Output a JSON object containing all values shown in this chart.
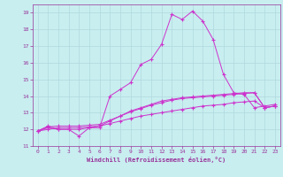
{
  "xlabel": "Windchill (Refroidissement éolien,°C)",
  "background_color": "#c8eef0",
  "grid_color": "#b0d8dc",
  "line_color": "#cc33cc",
  "xlim": [
    -0.5,
    23.5
  ],
  "ylim": [
    11,
    19.5
  ],
  "xticks": [
    0,
    1,
    2,
    3,
    4,
    5,
    6,
    7,
    8,
    9,
    10,
    11,
    12,
    13,
    14,
    15,
    16,
    17,
    18,
    19,
    20,
    21,
    22,
    23
  ],
  "yticks": [
    11,
    12,
    13,
    14,
    15,
    16,
    17,
    18,
    19
  ],
  "series": [
    {
      "x": [
        0,
        1,
        2,
        3,
        4,
        5,
        6,
        7,
        8,
        9,
        10,
        11,
        12,
        13,
        14,
        15,
        16,
        17,
        18,
        19,
        20,
        21,
        22,
        23
      ],
      "y": [
        11.9,
        12.2,
        12.0,
        12.0,
        11.6,
        12.1,
        12.1,
        14.0,
        14.4,
        14.8,
        15.9,
        16.2,
        17.1,
        18.9,
        18.6,
        19.1,
        18.5,
        17.4,
        15.3,
        14.2,
        14.1,
        13.3,
        13.4,
        13.5
      ]
    },
    {
      "x": [
        0,
        1,
        2,
        3,
        4,
        5,
        6,
        7,
        8,
        9,
        10,
        11,
        12,
        13,
        14,
        15,
        16,
        17,
        18,
        19,
        20,
        21,
        22,
        23
      ],
      "y": [
        11.9,
        12.1,
        12.0,
        12.0,
        12.0,
        12.1,
        12.2,
        12.5,
        12.8,
        13.1,
        13.3,
        13.5,
        13.7,
        13.8,
        13.9,
        13.95,
        14.0,
        14.05,
        14.1,
        14.15,
        14.2,
        14.2,
        13.3,
        13.4
      ]
    },
    {
      "x": [
        0,
        1,
        2,
        3,
        4,
        5,
        6,
        7,
        8,
        9,
        10,
        11,
        12,
        13,
        14,
        15,
        16,
        17,
        18,
        19,
        20,
        21,
        22,
        23
      ],
      "y": [
        11.9,
        12.0,
        12.1,
        12.1,
        12.1,
        12.15,
        12.2,
        12.35,
        12.5,
        12.65,
        12.8,
        12.9,
        13.0,
        13.1,
        13.2,
        13.3,
        13.4,
        13.45,
        13.5,
        13.6,
        13.65,
        13.7,
        13.3,
        13.4
      ]
    },
    {
      "x": [
        0,
        1,
        2,
        3,
        4,
        5,
        6,
        7,
        8,
        9,
        10,
        11,
        12,
        13,
        14,
        15,
        16,
        17,
        18,
        19,
        20,
        21,
        22,
        23
      ],
      "y": [
        11.9,
        12.15,
        12.2,
        12.2,
        12.2,
        12.25,
        12.3,
        12.55,
        12.8,
        13.05,
        13.25,
        13.45,
        13.6,
        13.75,
        13.85,
        13.9,
        13.95,
        14.0,
        14.05,
        14.1,
        14.15,
        14.2,
        13.3,
        13.4
      ]
    }
  ]
}
